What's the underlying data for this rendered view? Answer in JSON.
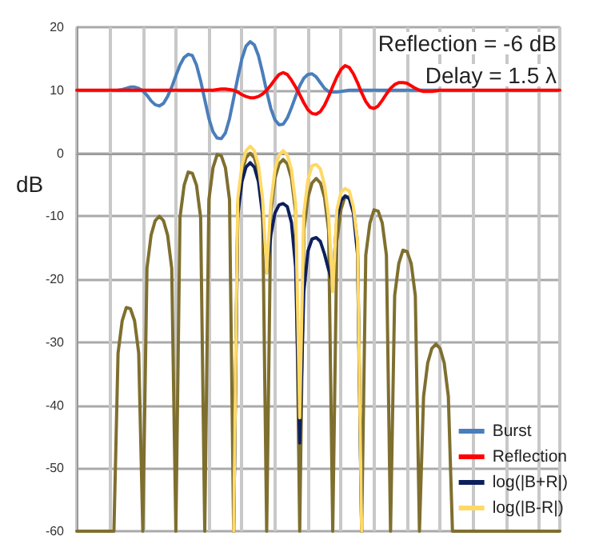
{
  "chart_data": {
    "type": "line",
    "ylabel": "dB",
    "annotations": [
      "Reflection = -6 dB",
      "Delay = 1.5 λ"
    ],
    "categories": [
      null,
      null,
      null,
      null,
      null,
      null,
      null,
      null,
      null,
      null,
      null,
      null,
      null,
      null,
      null,
      null,
      null,
      null,
      null,
      null,
      null,
      null,
      null,
      null,
      null,
      null,
      null,
      null,
      null,
      null,
      null,
      null,
      null,
      null,
      null,
      null,
      null,
      null,
      null,
      null,
      null,
      null,
      null,
      null,
      null,
      null,
      null,
      null,
      null,
      null,
      null,
      null,
      null,
      null,
      null,
      null,
      null,
      null,
      null,
      null,
      null,
      null,
      null,
      null,
      null,
      null,
      null,
      null,
      null,
      null,
      null,
      null,
      null,
      null,
      null,
      null,
      null,
      null,
      null,
      null,
      null,
      null,
      null,
      null,
      null,
      null,
      null,
      null,
      null,
      null,
      null,
      null,
      null,
      null,
      null,
      null,
      null,
      null,
      null,
      null,
      null,
      null,
      null,
      null,
      null,
      null,
      null,
      null,
      null,
      null,
      null,
      null,
      null,
      null,
      null,
      null,
      null,
      null
    ],
    "ylim": [
      -60,
      20
    ],
    "yticks": [
      -60,
      -50,
      -40,
      -30,
      -20,
      -10,
      0,
      10,
      20
    ],
    "tick_labels": "y",
    "grid": true,
    "legend": "bottom right",
    "line_style": "solid",
    "series": [
      {
        "color": "#7f6f2f",
        "values": [
          -60,
          -60,
          -60,
          -60,
          -60,
          -60,
          -60,
          -60,
          -60,
          -60,
          -31.7,
          -26.6,
          -24.5,
          -24.7,
          -26.6,
          -31.7,
          -60,
          -18.3,
          -13,
          -10.7,
          -10,
          -10.7,
          -13,
          -18.3,
          -60,
          -10.2,
          -5.1,
          -3,
          -3.2,
          -5.1,
          -10.2,
          -60,
          -7.4,
          -2.3,
          -0.2,
          -0.4,
          -2.3,
          -7.4,
          -60,
          -8.3,
          -3,
          -0.7,
          0,
          -0.7,
          -3,
          -8.3,
          -60,
          -9.3,
          -4,
          -1.7,
          -1,
          -1.7,
          -4,
          -9.3,
          -60,
          -12.3,
          -7,
          -4.7,
          -4,
          -4.7,
          -7,
          -12.3,
          -60,
          -14,
          -8.9,
          -6.8,
          -7,
          -8.9,
          -14,
          -60,
          -16.2,
          -11.1,
          -9,
          -9.2,
          -11.1,
          -16.2,
          -60,
          -22.6,
          -17.5,
          -15.4,
          -15.6,
          -17.5,
          -22.6,
          -60,
          -38.6,
          -33.3,
          -31,
          -30.3,
          -31,
          -33.3,
          -38.6,
          -60,
          -60,
          -60,
          -60,
          -60,
          -60,
          -60,
          -60,
          -60,
          -60,
          -60,
          -60,
          -60,
          -60,
          -60,
          -60,
          -60,
          -60,
          -60,
          -60,
          -60,
          -60,
          -60,
          -60,
          -60,
          -60,
          -60
        ]
      },
      {
        "name": "Burst",
        "color": "#4a7ebb",
        "values": [
          null,
          null,
          null,
          null,
          null,
          null,
          null,
          null,
          null,
          null,
          10,
          10.1,
          10.3,
          10.5,
          10.5,
          10.3,
          9.9,
          9.2,
          8.3,
          7.7,
          7.5,
          7.9,
          9,
          10.5,
          12.3,
          14,
          15.2,
          15.7,
          15.5,
          14,
          11.5,
          8.5,
          5.5,
          3.4,
          2.4,
          2.3,
          3.2,
          5.5,
          8.7,
          12,
          15,
          17,
          17.7,
          17.2,
          15.5,
          12.8,
          9.8,
          7.1,
          5.3,
          4.5,
          4.6,
          5.6,
          7.2,
          9,
          10.7,
          11.9,
          12.5,
          12.6,
          12.1,
          11.2,
          10.3,
          9.8,
          9.7,
          9.7,
          9.8,
          9.9,
          10,
          10,
          10,
          10,
          10,
          10,
          10,
          10,
          10,
          10,
          10,
          10,
          10,
          10,
          10,
          10,
          10,
          10,
          10,
          10,
          10,
          10,
          10,
          null,
          null,
          null,
          null,
          null,
          null,
          null,
          null,
          null,
          null,
          null,
          null,
          null,
          null,
          null,
          null,
          null,
          null,
          null,
          null,
          null,
          null,
          null,
          null,
          null,
          null,
          null,
          null,
          null
        ]
      },
      {
        "name": "Reflection",
        "color": "#ff0000",
        "values": [
          10,
          10,
          10,
          10,
          10,
          10,
          10,
          10,
          10,
          10,
          10,
          10,
          10,
          10,
          10,
          10,
          10,
          10,
          10,
          10,
          10,
          10,
          10,
          10,
          10,
          10,
          10,
          10,
          10,
          10,
          10,
          10,
          10,
          10,
          10.1,
          10.2,
          10.2,
          10.1,
          10,
          9.7,
          9.3,
          9,
          8.8,
          8.8,
          9,
          9.4,
          10,
          10.8,
          11.7,
          12.5,
          12.8,
          12.5,
          11.6,
          10.5,
          9.3,
          8,
          6.9,
          6.3,
          6.2,
          6.6,
          7.6,
          9,
          10.6,
          12.1,
          13.3,
          13.9,
          13.6,
          12.6,
          11.2,
          9.6,
          8.2,
          7.3,
          7.1,
          7.5,
          8.4,
          9.4,
          10.3,
          10.9,
          11.2,
          11.2,
          11.1,
          10.7,
          10.3,
          10,
          9.8,
          9.8,
          9.8,
          9.9,
          10,
          10,
          10,
          10,
          10,
          10,
          10,
          10,
          10,
          10,
          10,
          10,
          10,
          10,
          10,
          10,
          10,
          10,
          10,
          10,
          10,
          10,
          10,
          10,
          10,
          10,
          10,
          10,
          10,
          10
        ]
      },
      {
        "name": "log(|B+R|)",
        "color": "#0d1f5c",
        "values": [
          null,
          null,
          null,
          null,
          null,
          null,
          null,
          null,
          null,
          null,
          null,
          null,
          null,
          null,
          null,
          null,
          null,
          null,
          null,
          null,
          null,
          null,
          null,
          null,
          null,
          null,
          null,
          null,
          null,
          null,
          null,
          null,
          null,
          null,
          null,
          null,
          null,
          null,
          -60,
          -9.8,
          -4.5,
          -2.2,
          -1.5,
          -2.2,
          -4.5,
          -9.8,
          -19,
          -13,
          -9.5,
          -8.2,
          -8,
          -8.5,
          -11,
          -18,
          -46,
          -22,
          -15.5,
          -13.6,
          -13.4,
          -14,
          -16,
          -18.5,
          -20.5,
          -10.5,
          -7.5,
          -6.8,
          -7.2,
          -9.5,
          -16,
          -60,
          null,
          null,
          null,
          null,
          null,
          null,
          null,
          null,
          null,
          null,
          null,
          null,
          null,
          null,
          null,
          null,
          null,
          null,
          null,
          null,
          null,
          null,
          null,
          null,
          null,
          null,
          null,
          null,
          null,
          null,
          null,
          null,
          null,
          null,
          null,
          null,
          null,
          null,
          null,
          null,
          null,
          null,
          null,
          null,
          null,
          null,
          null,
          null
        ]
      },
      {
        "name": "log(|B-R|)",
        "color": "#ffd966",
        "values": [
          null,
          null,
          null,
          null,
          null,
          null,
          null,
          null,
          null,
          null,
          null,
          null,
          null,
          null,
          null,
          null,
          null,
          null,
          null,
          null,
          null,
          null,
          null,
          null,
          null,
          null,
          null,
          null,
          null,
          null,
          null,
          null,
          null,
          null,
          null,
          null,
          null,
          null,
          -60,
          -7.2,
          -1.9,
          0.4,
          1.1,
          0.4,
          -1.9,
          -7.2,
          -19,
          -8,
          -2.6,
          -0.3,
          0.4,
          -0.3,
          -2.6,
          -8,
          -42,
          -9.5,
          -4.2,
          -2,
          -1.8,
          -2.5,
          -5,
          -10,
          -22,
          -9,
          -6.2,
          -5.6,
          -6,
          -8.5,
          -14,
          -60,
          null,
          null,
          null,
          null,
          null,
          null,
          null,
          null,
          null,
          null,
          null,
          null,
          null,
          null,
          null,
          null,
          null,
          null,
          null,
          null,
          null,
          null,
          null,
          null,
          null,
          null,
          null,
          null,
          null,
          null,
          null,
          null,
          null,
          null,
          null,
          null,
          null,
          null,
          null,
          null,
          null,
          null,
          null,
          null,
          null,
          null,
          null,
          null
        ]
      }
    ]
  }
}
